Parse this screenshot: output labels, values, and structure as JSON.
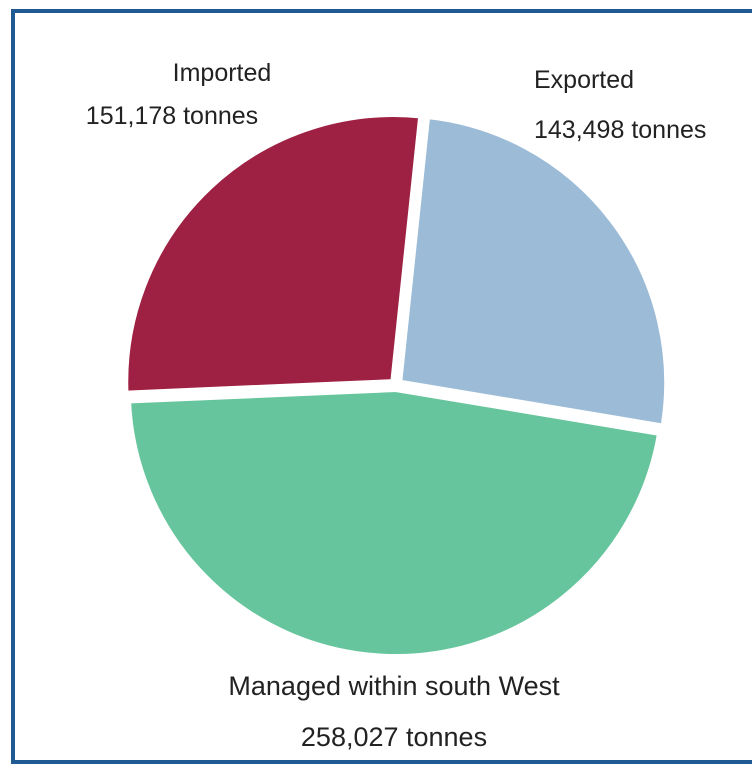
{
  "chart_data": {
    "type": "pie",
    "slices": [
      {
        "name": "Exported",
        "value": 143498,
        "value_label": "143,498 tonnes",
        "color": "#9bbbd6"
      },
      {
        "name": "Managed within south West",
        "value": 258027,
        "value_label": "258,027 tonnes",
        "color": "#66c59c"
      },
      {
        "name": "Imported",
        "value": 151178,
        "value_label": "151,178 tonnes",
        "color": "#9e2042"
      }
    ],
    "start": "top, clockwise",
    "border_color": "#1f5a93"
  }
}
